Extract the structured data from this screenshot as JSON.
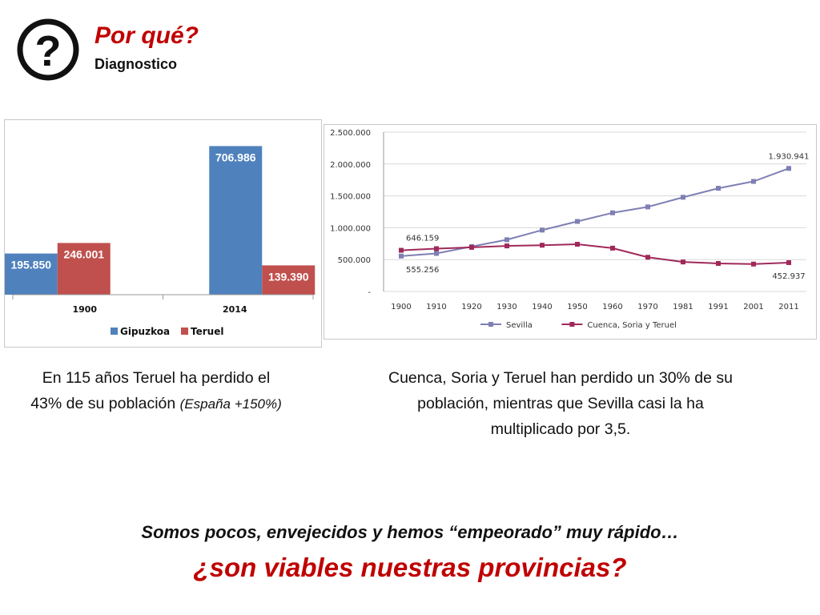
{
  "header": {
    "icon": "question-circle-icon",
    "title": "Por qué?",
    "subtitle": "Diagnostico"
  },
  "chart_data": [
    {
      "type": "bar",
      "title": "",
      "xlabel": "",
      "ylabel": "",
      "categories": [
        "1900",
        "2014"
      ],
      "series": [
        {
          "name": "Gipuzkoa",
          "values": [
            195850,
            706986
          ],
          "labels": [
            "195.850",
            "706.986"
          ],
          "color": "#4f81bd"
        },
        {
          "name": "Teruel",
          "values": [
            246001,
            139390
          ],
          "labels": [
            "246.001",
            "139.390"
          ],
          "color": "#c0504d"
        }
      ],
      "ylim": [
        0,
        800000
      ],
      "grid": false,
      "legend": "bottom"
    },
    {
      "type": "line",
      "title": "",
      "xlabel": "",
      "ylabel": "",
      "categories": [
        "1900",
        "1910",
        "1920",
        "1930",
        "1940",
        "1950",
        "1960",
        "1970",
        "1981",
        "1991",
        "2001",
        "2011"
      ],
      "series": [
        {
          "name": "Sevilla",
          "values": [
            555256,
            597000,
            705000,
            812000,
            963000,
            1099000,
            1234000,
            1327000,
            1478000,
            1619000,
            1727000,
            1930941
          ],
          "color": "#7f7fb4"
        },
        {
          "name": "Cuenca, Soria y Teruel",
          "values": [
            646159,
            672000,
            692000,
            715000,
            726000,
            741000,
            680000,
            537000,
            463000,
            440000,
            430000,
            452937
          ],
          "color": "#a0295a"
        }
      ],
      "data_labels": [
        {
          "series": 0,
          "index": 0,
          "text": "555.256",
          "position": "below"
        },
        {
          "series": 1,
          "index": 0,
          "text": "646.159",
          "position": "above"
        },
        {
          "series": 0,
          "index": 11,
          "text": "1.930.941",
          "position": "above"
        },
        {
          "series": 1,
          "index": 11,
          "text": "452.937",
          "position": "below"
        }
      ],
      "yticks": [
        {
          "value": 0,
          "label": "-"
        },
        {
          "value": 500000,
          "label": "500.000"
        },
        {
          "value": 1000000,
          "label": "1.000.000"
        },
        {
          "value": 1500000,
          "label": "1.500.000"
        },
        {
          "value": 2000000,
          "label": "2.000.000"
        },
        {
          "value": 2500000,
          "label": "2.500.000"
        }
      ],
      "ylim": [
        0,
        2500000
      ],
      "grid": true,
      "legend": "bottom"
    }
  ],
  "captions": {
    "left_line1": "En 115 años Teruel ha perdido el",
    "left_line2": "43% de su población",
    "left_italic": "(España +150%)",
    "right_line1": "Cuenca, Soria y Teruel han perdido un 30% de su",
    "right_line2": "población, mientras que Sevilla casi la ha",
    "right_line3": "multiplicado por 3,5."
  },
  "bottom": {
    "line1": "Somos pocos, envejecidos y hemos “empeorado” muy rápido…",
    "line2": "¿son viables nuestras provincias?"
  }
}
